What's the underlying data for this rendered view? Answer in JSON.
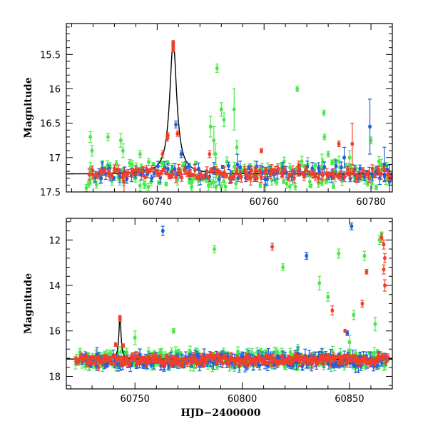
{
  "colors": {
    "model_line": "#000000",
    "green_series": "#4be84b",
    "blue_series": "#1f5fe0",
    "red_series": "#f0402a",
    "frame": "#000000"
  },
  "chart_data": [
    {
      "type": "scatter",
      "panel": "top",
      "xlabel": "",
      "ylabel": "Magnitude",
      "xlim": [
        60723,
        60784
      ],
      "ylim": [
        17.5,
        15.05
      ],
      "y_inverted": true,
      "xticks": [
        60740,
        60760,
        60780
      ],
      "yticks": [
        15.5,
        16,
        16.5,
        17,
        17.5
      ],
      "series": [
        {
          "color_key": "green_series",
          "points": [
            [
              60727.5,
              16.7,
              0.08
            ],
            [
              60727.8,
              16.9,
              0.08
            ],
            [
              60727.5,
              17.15,
              0.08
            ],
            [
              60730.8,
              16.7,
              0.05
            ],
            [
              60733.2,
              16.75,
              0.1
            ],
            [
              60733.6,
              16.9,
              0.1
            ],
            [
              60733.0,
              17.3,
              0.1
            ],
            [
              60736.8,
              16.95,
              0.05
            ],
            [
              60746.0,
              17.2,
              0.1
            ],
            [
              60750.0,
              16.55,
              0.15
            ],
            [
              60750.6,
              16.75,
              0.2
            ],
            [
              60750.9,
              16.95,
              0.15
            ],
            [
              60751.0,
              17.2,
              0.2
            ],
            [
              60751.2,
              15.7,
              0.06
            ],
            [
              60752.0,
              16.3,
              0.1
            ],
            [
              60752.5,
              16.45,
              0.1
            ],
            [
              60754.4,
              16.3,
              0.3
            ],
            [
              60754.9,
              16.85,
              0.1
            ],
            [
              60758.3,
              17.15,
              0.1
            ],
            [
              60760.3,
              17.4,
              0.1
            ],
            [
              60766.2,
              16.0,
              0.04
            ],
            [
              60768.2,
              17.1,
              0.1
            ],
            [
              60770.8,
              17.15,
              0.2
            ],
            [
              60771.2,
              16.35,
              0.04
            ],
            [
              60771.3,
              16.7,
              0.04
            ],
            [
              60772.0,
              16.95,
              0.04
            ],
            [
              60773.3,
              17.2,
              0.15
            ],
            [
              60776.0,
              17.0,
              0.1
            ],
            [
              60780.0,
              16.75,
              0.05
            ],
            [
              60783.5,
              17.35,
              0.15
            ]
          ],
          "band": {
            "x": [
              60726.5,
              60784
            ],
            "y_min": 17.05,
            "y_max": 17.45,
            "count": 150,
            "err": 0.05
          }
        },
        {
          "color_key": "blue_series",
          "points": [
            [
              60729.5,
              17.3,
              0.07
            ],
            [
              60743.5,
              16.52,
              0.05
            ],
            [
              60744.5,
              16.95,
              0.05
            ],
            [
              60755.0,
              17.1,
              0.15
            ],
            [
              60775.0,
              17.0,
              0.15
            ],
            [
              60777.0,
              17.25,
              0.1
            ],
            [
              60779.8,
              16.55,
              0.4
            ],
            [
              60782.5,
              17.1,
              0.25
            ],
            [
              60783.5,
              17.35,
              0.25
            ]
          ],
          "band": {
            "x": [
              60728,
              60784
            ],
            "y_min": 17.12,
            "y_max": 17.32,
            "count": 90,
            "err": 0.06
          }
        },
        {
          "color_key": "red_series",
          "points": [
            [
              60743.0,
              15.32,
              0.02
            ],
            [
              60743.0,
              15.36,
              0.02
            ],
            [
              60743.0,
              15.4,
              0.02
            ],
            [
              60743.0,
              15.44,
              0.02
            ],
            [
              60742.0,
              16.68,
              0.04
            ],
            [
              60741.9,
              16.72,
              0.04
            ],
            [
              60743.8,
              16.65,
              0.04
            ],
            [
              60741.0,
              16.95,
              0.05
            ],
            [
              60749.8,
              16.95,
              0.05
            ],
            [
              60757.5,
              17.3,
              0.1
            ],
            [
              60759.5,
              16.9,
              0.03
            ],
            [
              60766.5,
              17.15,
              0.1
            ],
            [
              60774.0,
              16.8,
              0.04
            ],
            [
              60776.5,
              16.8,
              0.3
            ],
            [
              60733.8,
              17.35,
              0.2
            ]
          ],
          "band": {
            "x": [
              60727,
              60784
            ],
            "y_min": 17.16,
            "y_max": 17.3,
            "count": 130,
            "err": 0.05
          }
        }
      ],
      "model": {
        "x0": 60743.0,
        "peak": 15.32,
        "base": 17.24,
        "width": 0.8
      }
    },
    {
      "type": "scatter",
      "panel": "bottom",
      "xlabel": "HJD−2400000",
      "ylabel": "Magnitude",
      "xlim": [
        60718,
        60870
      ],
      "ylim": [
        18.55,
        11.05
      ],
      "y_inverted": true,
      "xticks": [
        60750,
        60800,
        60850
      ],
      "yticks": [
        12,
        14,
        16,
        18
      ],
      "series": [
        {
          "color_key": "green_series",
          "points": [
            [
              60787.0,
              12.4,
              0.15
            ],
            [
              60819.0,
              13.2,
              0.15
            ],
            [
              60836.0,
              13.9,
              0.3
            ],
            [
              60840.0,
              14.5,
              0.2
            ],
            [
              60845.0,
              12.6,
              0.2
            ],
            [
              60852.0,
              15.3,
              0.2
            ],
            [
              60857.0,
              12.7,
              0.2
            ],
            [
              60862.0,
              15.7,
              0.3
            ],
            [
              60864.0,
              12.0,
              0.2
            ],
            [
              60865.0,
              11.8,
              0.15
            ],
            [
              60850.0,
              16.5,
              0.3
            ],
            [
              60826.0,
              16.8,
              0.2
            ],
            [
              60798.0,
              16.9,
              0.2
            ],
            [
              60768.0,
              16.0,
              0.1
            ],
            [
              60750.0,
              16.3,
              0.3
            ]
          ],
          "band": {
            "x": [
              60722,
              60868
            ],
            "y_min": 16.9,
            "y_max": 17.6,
            "count": 260,
            "err": 0.15
          }
        },
        {
          "color_key": "blue_series",
          "points": [
            [
              60763.0,
              11.6,
              0.2
            ],
            [
              60830.0,
              12.7,
              0.15
            ],
            [
              60851.0,
              11.4,
              0.15
            ],
            [
              60849.0,
              16.1,
              0.1
            ],
            [
              60826.0,
              17.0,
              0.3
            ]
          ],
          "band": {
            "x": [
              60725,
              60868
            ],
            "y_min": 17.05,
            "y_max": 17.55,
            "count": 200,
            "err": 0.2
          }
        },
        {
          "color_key": "red_series",
          "points": [
            [
              60743.0,
              15.4,
              0.08
            ],
            [
              60743.0,
              15.5,
              0.08
            ],
            [
              60741.0,
              16.6,
              0.08
            ],
            [
              60744.5,
              16.65,
              0.08
            ],
            [
              60814.0,
              12.3,
              0.15
            ],
            [
              60842.0,
              15.1,
              0.2
            ],
            [
              60856.0,
              14.8,
              0.15
            ],
            [
              60858.0,
              13.4,
              0.1
            ],
            [
              60866.0,
              12.2,
              0.2
            ],
            [
              60866.5,
              12.8,
              0.2
            ],
            [
              60866.0,
              13.3,
              0.2
            ],
            [
              60866.5,
              14.0,
              0.25
            ],
            [
              60865.0,
              11.9,
              0.2
            ],
            [
              60848.0,
              16.0,
              0.05
            ],
            [
              60733.0,
              17.6,
              0.15
            ]
          ],
          "band": {
            "x": [
              60722,
              60868
            ],
            "y_min": 17.1,
            "y_max": 17.45,
            "count": 260,
            "err": 0.12
          }
        }
      ],
      "model": {
        "x0": 60743.0,
        "peak": 15.35,
        "base": 17.24,
        "width": 0.6
      }
    }
  ]
}
